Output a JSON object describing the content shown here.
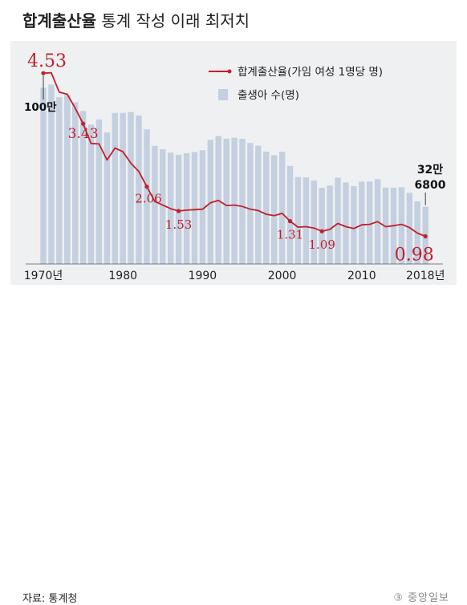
{
  "header": {
    "title_bold": "합계출산율",
    "title_rest": "통계 작성 이래 최저치"
  },
  "footer": {
    "source": "자료: 통계청",
    "logo": "중앙일보"
  },
  "colors": {
    "bar": "#c4cfe0",
    "line": "#c0202a",
    "panel": "#eef0f2"
  },
  "chart_data": {
    "type": "bar+line",
    "title": "합계출산율 통계 작성 이래 최저치",
    "x_ticks": [
      "1970년",
      "1980",
      "1990",
      "2000",
      "2010",
      "2018년"
    ],
    "years": [
      1970,
      1971,
      1972,
      1973,
      1974,
      1975,
      1976,
      1977,
      1978,
      1979,
      1980,
      1981,
      1982,
      1983,
      1984,
      1985,
      1986,
      1987,
      1988,
      1989,
      1990,
      1991,
      1992,
      1993,
      1994,
      1995,
      1996,
      1997,
      1998,
      1999,
      2000,
      2001,
      2002,
      2003,
      2004,
      2005,
      2006,
      2007,
      2008,
      2009,
      2010,
      2011,
      2012,
      2013,
      2014,
      2015,
      2016,
      2017,
      2018
    ],
    "series": [
      {
        "name": "출생아 수(명)",
        "kind": "bar",
        "unit": "명",
        "values": [
          1006645,
          1024773,
          952780,
          965521,
          922823,
          874030,
          796331,
          825339,
          750728,
          862669,
          862835,
          867409,
          848312,
          769155,
          674793,
          655489,
          636019,
          623831,
          633092,
          639431,
          649738,
          709275,
          730678,
          715826,
          721185,
          715020,
          691226,
          675394,
          641594,
          620668,
          640089,
          559934,
          496911,
          495036,
          476958,
          435031,
          448153,
          493189,
          465892,
          444849,
          470171,
          471265,
          484550,
          436455,
          435435,
          438420,
          406243,
          357771,
          326822
        ]
      },
      {
        "name": "합계출산율(가임 여성 1명당 명)",
        "kind": "line",
        "unit": "명",
        "values": [
          4.53,
          4.54,
          4.12,
          4.07,
          3.77,
          3.43,
          3.0,
          2.99,
          2.64,
          2.9,
          2.82,
          2.57,
          2.39,
          2.06,
          1.74,
          1.66,
          1.58,
          1.53,
          1.55,
          1.56,
          1.57,
          1.71,
          1.76,
          1.65,
          1.66,
          1.63,
          1.57,
          1.54,
          1.46,
          1.43,
          1.48,
          1.31,
          1.18,
          1.19,
          1.16,
          1.09,
          1.13,
          1.26,
          1.19,
          1.15,
          1.23,
          1.24,
          1.3,
          1.19,
          1.21,
          1.24,
          1.17,
          1.05,
          0.98
        ]
      }
    ],
    "annotations": {
      "tfr_labels": [
        {
          "year": 1970,
          "text": "4.53"
        },
        {
          "year": 1975,
          "text": "3.43"
        },
        {
          "year": 1983,
          "text": "2.06"
        },
        {
          "year": 1987,
          "text": "1.53"
        },
        {
          "year": 2001,
          "text": "1.31"
        },
        {
          "year": 2005,
          "text": "1.09"
        },
        {
          "year": 2018,
          "text": "0.98"
        }
      ],
      "births_start": "100만",
      "births_end_line1": "32만",
      "births_end_line2": "6800"
    },
    "y_bar_range": [
      0,
      1100000
    ],
    "y_line_range": [
      0.5,
      4.9
    ],
    "legend_position": "top-right",
    "grid": false
  }
}
